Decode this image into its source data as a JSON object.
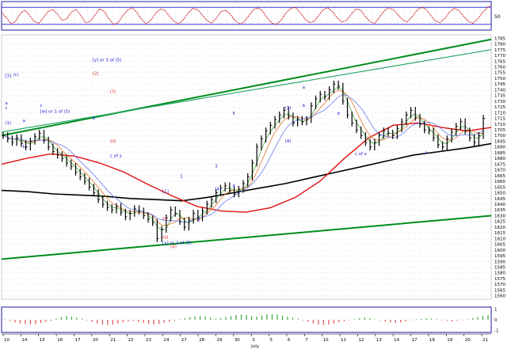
{
  "colors": {
    "background": "#ffffff",
    "price_bar": "#000000",
    "trend_line": "#008c1e",
    "trend_line_light": "#2aa86a",
    "ma_red": "#e01010",
    "ma_black": "#000000",
    "ma_blue": "#6a7cf0",
    "ma_green": "#4caa40",
    "ma_orange": "#e07a30",
    "oscillator_line": "#cc2020",
    "oscillator_band": "#3a3ae0",
    "histogram_up": "#3aa83a",
    "histogram_down": "#e05050",
    "label_blue": "#1a1ad0",
    "label_red": "#d01010",
    "frame": "#1a1aa0"
  },
  "chart_data": [
    {
      "type": "line",
      "panel": "oscillator",
      "axis_label": "50",
      "bands": [
        80,
        20
      ],
      "ylim": [
        0,
        100
      ],
      "values": [
        62,
        44,
        22,
        30,
        58,
        70,
        52,
        30,
        24,
        44,
        66,
        72,
        56,
        34,
        40,
        64,
        72,
        50,
        26,
        30,
        52,
        74,
        66,
        40,
        20,
        26,
        50,
        70,
        78,
        62,
        38,
        22,
        34,
        58,
        74,
        70,
        48,
        30,
        22,
        36,
        60,
        76,
        72,
        54,
        34,
        24,
        40,
        64,
        70,
        56,
        34,
        22,
        28,
        50,
        72,
        78,
        66,
        42,
        24,
        20,
        36,
        60,
        76,
        80,
        62,
        40,
        26,
        30,
        52,
        72,
        78,
        64,
        42,
        28,
        34,
        56,
        74,
        70,
        48,
        30,
        24,
        44,
        66,
        78,
        72,
        54,
        36,
        28,
        46,
        68,
        80,
        74,
        52,
        32,
        26,
        40,
        62,
        76,
        70,
        50,
        32,
        24,
        36,
        58,
        76,
        88
      ]
    },
    {
      "type": "bar",
      "panel": "price",
      "y_ticks": [
        1785,
        1780,
        1775,
        1770,
        1765,
        1760,
        1755,
        1750,
        1745,
        1740,
        1735,
        1730,
        1725,
        1720,
        1715,
        1710,
        1705,
        1700,
        1695,
        1690,
        1685,
        1680,
        1675,
        1670,
        1665,
        1660,
        1655,
        1650,
        1645,
        1640,
        1635,
        1630,
        1625,
        1620,
        1615,
        1610,
        1605,
        1600,
        1595,
        1590,
        1585,
        1580,
        1575,
        1570,
        1565,
        1560
      ],
      "ylim": [
        1557,
        1788
      ],
      "x_ticks": [
        "10",
        "14",
        "15",
        "16",
        "17",
        "20",
        "21",
        "22",
        "23",
        "24",
        "27",
        "28",
        "29",
        "30",
        "3",
        "5",
        "6",
        "7",
        "10",
        "11",
        "12",
        "13",
        "14",
        "17",
        "18",
        "19",
        "20",
        "21"
      ],
      "x_sub_label": "July",
      "close": [
        1700,
        1697,
        1694,
        1698,
        1693,
        1690,
        1695,
        1699,
        1702,
        1696,
        1690,
        1686,
        1683,
        1680,
        1676,
        1673,
        1668,
        1664,
        1660,
        1655,
        1650,
        1644,
        1640,
        1637,
        1635,
        1638,
        1633,
        1629,
        1632,
        1636,
        1634,
        1630,
        1627,
        1624,
        1610,
        1618,
        1628,
        1635,
        1632,
        1625,
        1620,
        1626,
        1632,
        1628,
        1634,
        1640,
        1644,
        1650,
        1654,
        1656,
        1652,
        1649,
        1653,
        1658,
        1664,
        1676,
        1690,
        1697,
        1704,
        1709,
        1714,
        1718,
        1722,
        1717,
        1711,
        1714,
        1712,
        1714,
        1726,
        1732,
        1736,
        1734,
        1740,
        1745,
        1743,
        1730,
        1718,
        1711,
        1705,
        1700,
        1694,
        1690,
        1694,
        1700,
        1704,
        1702,
        1700,
        1706,
        1712,
        1718,
        1722,
        1716,
        1710,
        1705,
        1704,
        1698,
        1692,
        1690,
        1697,
        1703,
        1708,
        1712,
        1704,
        1698,
        1694,
        1700,
        1715
      ],
      "moving_averages": [
        {
          "period": 200,
          "values": [
            1652,
            1651,
            1649,
            1648,
            1647,
            1645,
            1644,
            1643,
            1646,
            1650,
            1654,
            1658,
            1663,
            1668,
            1673,
            1678,
            1683,
            1686,
            1689,
            1693
          ]
        },
        {
          "period": 50,
          "values": [
            1675,
            1680,
            1684,
            1682,
            1676,
            1668,
            1657,
            1647,
            1638,
            1634,
            1633,
            1637,
            1646,
            1660,
            1680,
            1698,
            1709,
            1711,
            1707,
            1704,
            1707
          ]
        }
      ],
      "annotations": [
        {
          "text": "[w] or 1 of (5)",
          "x": "15",
          "y": 1720
        },
        {
          "text": "[x] or 2 of (5)",
          "x": "24",
          "y": 1605
        },
        {
          "text": "[y] or 3 of (5)",
          "x": "20",
          "y": 1765
        },
        {
          "text": "(2)",
          "x": "20",
          "y": 1753
        },
        {
          "text": "(?)",
          "x": "21",
          "y": 1737
        },
        {
          "text": "c of y",
          "x": "21",
          "y": 1681
        },
        {
          "text": "c of x",
          "x": "12",
          "y": 1683
        },
        {
          "text": "[1]",
          "x": "24",
          "y": 1650
        },
        {
          "text": "(2)",
          "x": "24",
          "y": 1602
        },
        {
          "text": "(3)",
          "x": "6",
          "y": 1723
        },
        {
          "text": "(4)",
          "x": "6",
          "y": 1694
        },
        {
          "text": "[3]",
          "x": "10",
          "y": 1751
        },
        {
          "text": "[4]",
          "x": "29",
          "y": 1652
        },
        {
          "text": "(i)",
          "x": "24",
          "y": 1626
        },
        {
          "text": "(ii)",
          "x": "24",
          "y": 1610
        },
        {
          "text": "(c)",
          "x": "10",
          "y": 1752
        },
        {
          "text": "(1)",
          "x": "10",
          "y": 1710
        },
        {
          "text": "1",
          "x": "27",
          "y": 1663
        },
        {
          "text": "2",
          "x": "28",
          "y": 1625
        },
        {
          "text": "3",
          "x": "29",
          "y": 1672
        },
        {
          "text": "4",
          "x": "30",
          "y": 1655
        },
        {
          "text": "5",
          "x": "30",
          "y": 1718
        },
        {
          "text": "a",
          "x": "7",
          "y": 1741
        },
        {
          "text": "b",
          "x": "7",
          "y": 1725
        },
        {
          "text": "c",
          "x": "10",
          "y": 1723
        },
        {
          "text": "a",
          "x": "10",
          "y": 1727
        },
        {
          "text": "b",
          "x": "11",
          "y": 1718
        },
        {
          "text": "a",
          "x": "14",
          "y": 1712
        },
        {
          "text": "b",
          "x": "14",
          "y": 1689
        },
        {
          "text": "c",
          "x": "15",
          "y": 1725
        },
        {
          "text": "a",
          "x": "18",
          "y": 1684
        },
        {
          "text": "b",
          "x": "20",
          "y": 1714
        },
        {
          "text": "(ii)",
          "x": "21",
          "y": 1694
        }
      ]
    },
    {
      "type": "bar",
      "panel": "histogram",
      "y_ticks": [
        "1",
        "0",
        "-1"
      ],
      "ylim": [
        -1.2,
        1.2
      ],
      "values": [
        0.05,
        -0.1,
        -0.25,
        -0.35,
        -0.4,
        -0.45,
        -0.4,
        -0.3,
        -0.2,
        -0.1,
        0.1,
        0.25,
        0.35,
        0.3,
        0.2,
        0.1,
        -0.05,
        -0.2,
        -0.35,
        -0.45,
        -0.5,
        -0.45,
        -0.35,
        -0.25,
        -0.15,
        -0.1,
        -0.2,
        -0.3,
        -0.4,
        -0.45,
        -0.4,
        -0.3,
        -0.2,
        -0.1,
        0.05,
        0.15,
        0.25,
        0.3,
        0.35,
        0.3,
        0.2,
        0.1,
        0.15,
        0.25,
        0.35,
        0.45,
        0.5,
        0.45,
        0.35,
        0.3,
        0.4,
        0.5,
        0.55,
        0.5,
        0.4,
        0.3,
        0.2,
        0.1,
        -0.05,
        -0.2,
        -0.35,
        -0.45,
        -0.5,
        -0.45,
        -0.35,
        -0.25,
        -0.15,
        -0.05,
        0.05,
        0.15,
        0.2,
        0.15,
        0.05,
        -0.05,
        -0.15,
        -0.25,
        -0.3,
        -0.25,
        -0.15,
        -0.05,
        0.05,
        0.1,
        0.15,
        0.1,
        0.05,
        -0.05,
        -0.1,
        -0.15,
        -0.1,
        -0.05,
        0.05,
        0.15,
        0.25,
        0.35,
        0.45
      ]
    }
  ]
}
